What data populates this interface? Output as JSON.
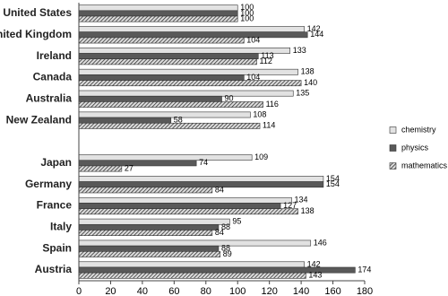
{
  "chart_data": {
    "type": "hbar",
    "categories": [
      "United States",
      "United Kingdom",
      "Ireland",
      "Canada",
      "Australia",
      "New Zealand",
      null,
      "Japan",
      "Germany",
      "France",
      "Italy",
      "Spain",
      "Austria"
    ],
    "series": [
      {
        "name": "chemistry",
        "color": "#e2e2e2",
        "values": [
          100,
          142,
          133,
          138,
          135,
          108,
          null,
          109,
          154,
          134,
          95,
          146,
          142
        ]
      },
      {
        "name": "physics",
        "color": "#595959",
        "values": [
          100,
          144,
          113,
          104,
          90,
          58,
          null,
          74,
          154,
          127,
          88,
          88,
          174
        ]
      },
      {
        "name": "mathematics",
        "color": "#8c8c8c",
        "hatch": true,
        "values": [
          100,
          104,
          112,
          140,
          116,
          114,
          null,
          27,
          84,
          138,
          84,
          89,
          143
        ]
      }
    ],
    "xlim": [
      0,
      180
    ],
    "xticks": [
      0,
      20,
      40,
      60,
      80,
      100,
      120,
      140,
      160,
      180
    ],
    "legend": "right",
    "data_labels": true
  }
}
